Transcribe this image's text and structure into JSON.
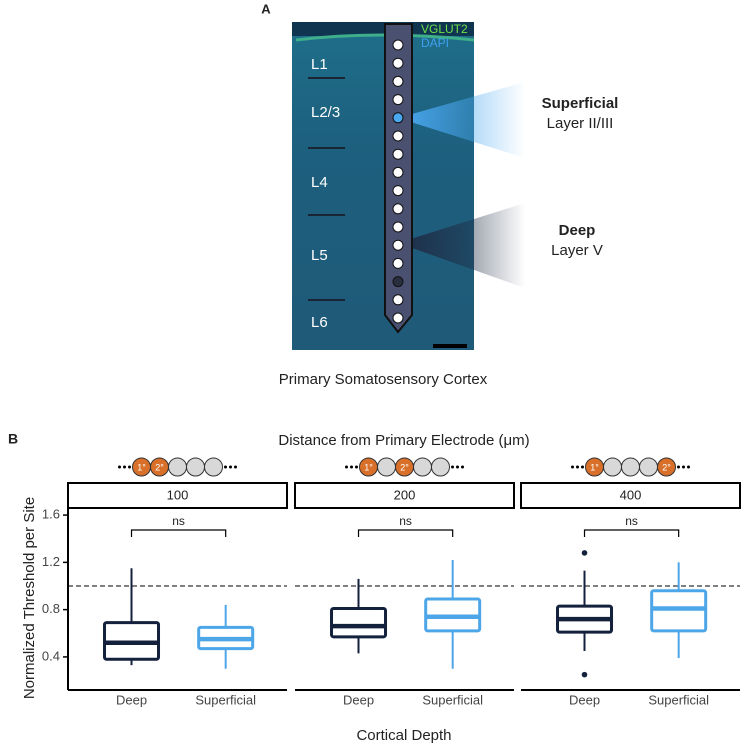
{
  "panel_a": {
    "label": "A",
    "legend": [
      "VGLUT2",
      "DAPI"
    ],
    "layers": [
      "L1",
      "L2/3",
      "L4",
      "L5",
      "L6"
    ],
    "superficial": {
      "title": "Superficial",
      "subtitle": "Layer II/III"
    },
    "deep": {
      "title": "Deep",
      "subtitle": "Layer V"
    },
    "caption": "Primary Somatosensory Cortex"
  },
  "chart_data": {
    "type": "box",
    "label": "B",
    "title": "Distance from Primary Electrode (μm)",
    "xlabel": "Cortical Depth",
    "ylabel": "Normalized Threshold per Site",
    "categories": [
      "Deep",
      "Superficial"
    ],
    "colors": [
      "#14213d",
      "#4da6e8"
    ],
    "electrode_labels": [
      "1°",
      "2°"
    ],
    "ylim": [
      0.12,
      1.66
    ],
    "yticks": [
      0.4,
      0.8,
      1.2,
      1.6
    ],
    "hline": 1.0,
    "facets": [
      {
        "label": "100",
        "annotation": "ns",
        "boxes": [
          {
            "min": 0.33,
            "q1": 0.38,
            "median": 0.52,
            "q3": 0.69,
            "max": 1.15,
            "outliers": []
          },
          {
            "min": 0.3,
            "q1": 0.47,
            "median": 0.55,
            "q3": 0.65,
            "max": 0.84,
            "outliers": []
          }
        ]
      },
      {
        "label": "200",
        "annotation": "ns",
        "boxes": [
          {
            "min": 0.43,
            "q1": 0.57,
            "median": 0.66,
            "q3": 0.81,
            "max": 1.06,
            "outliers": []
          },
          {
            "min": 0.3,
            "q1": 0.62,
            "median": 0.74,
            "q3": 0.89,
            "max": 1.22,
            "outliers": []
          }
        ]
      },
      {
        "label": "400",
        "annotation": "ns",
        "boxes": [
          {
            "min": 0.45,
            "q1": 0.61,
            "median": 0.72,
            "q3": 0.83,
            "max": 1.13,
            "outliers": [
              1.28,
              0.25
            ]
          },
          {
            "min": 0.39,
            "q1": 0.62,
            "median": 0.81,
            "q3": 0.96,
            "max": 1.2,
            "outliers": []
          }
        ]
      }
    ]
  }
}
